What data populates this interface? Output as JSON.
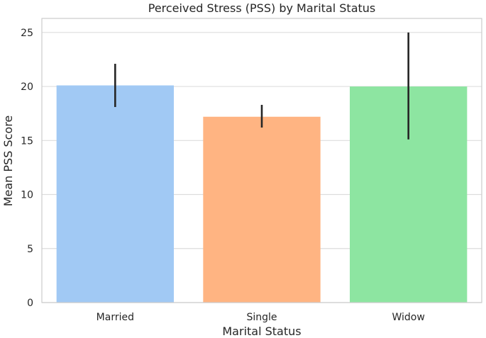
{
  "chart_data": {
    "type": "bar",
    "title": "Perceived Stress (PSS) by Marital Status",
    "xlabel": "Marital Status",
    "ylabel": "Mean PSS Score",
    "categories": [
      "Married",
      "Single",
      "Widow"
    ],
    "values": [
      20.1,
      17.2,
      20.0
    ],
    "error_bars": [
      [
        18.1,
        22.1
      ],
      [
        16.2,
        18.3
      ],
      [
        15.1,
        25.0
      ]
    ],
    "colors": [
      "#a1c9f4",
      "#ffb482",
      "#8de5a1"
    ],
    "ylim": [
      0,
      26.3
    ],
    "yticks": [
      "0",
      "5",
      "10",
      "15",
      "20",
      "25"
    ],
    "grid": true,
    "legend": "none"
  }
}
